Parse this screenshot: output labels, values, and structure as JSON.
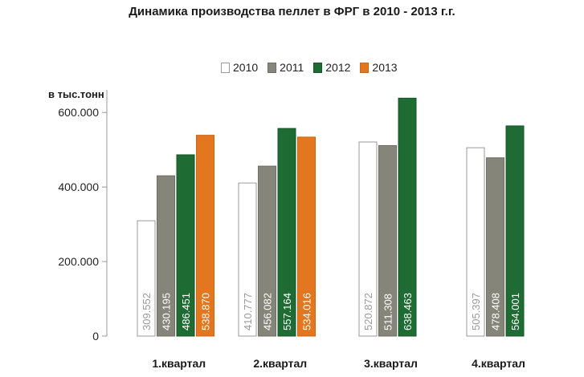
{
  "chart_data": {
    "type": "bar",
    "title": "Динамика производства пеллет в ФРГ в 2010 - 2013 г.г.",
    "ylabel": "в тыс.тонн",
    "xlabel": "",
    "ylim": [
      0,
      650000
    ],
    "yticks": [
      {
        "value": 0,
        "label": "0"
      },
      {
        "value": 200000,
        "label": "200.000"
      },
      {
        "value": 400000,
        "label": "400.000"
      },
      {
        "value": 600000,
        "label": "600.000"
      }
    ],
    "categories": [
      "1.квартал",
      "2.квартал",
      "3.квартал",
      "4.квартал"
    ],
    "legend_position": "top",
    "grid": false,
    "series": [
      {
        "name": "2010",
        "color": "#ffffff",
        "border": "#9a9a9a",
        "text_color": "#9a9a9a",
        "values": [
          309552,
          410777,
          520872,
          505397
        ],
        "labels": [
          "309.552",
          "410.777",
          "520.872",
          "505.397"
        ]
      },
      {
        "name": "2011",
        "color": "#86857a",
        "border": "#6e6d63",
        "text_color": "#ffffff",
        "values": [
          430195,
          456082,
          511308,
          478408
        ],
        "labels": [
          "430.195",
          "456.082",
          "511.308",
          "478.408"
        ]
      },
      {
        "name": "2012",
        "color": "#1f6b34",
        "border": "#175528",
        "text_color": "#ffffff",
        "values": [
          486451,
          557164,
          638463,
          564001
        ],
        "labels": [
          "486.451",
          "557.164",
          "638.463",
          "564.001"
        ]
      },
      {
        "name": "2013",
        "color": "#e2771f",
        "border": "#c9661a",
        "text_color": "#ffffff",
        "values": [
          538870,
          534016,
          null,
          null
        ],
        "labels": [
          "538.870",
          "534.016",
          "",
          ""
        ]
      }
    ]
  }
}
